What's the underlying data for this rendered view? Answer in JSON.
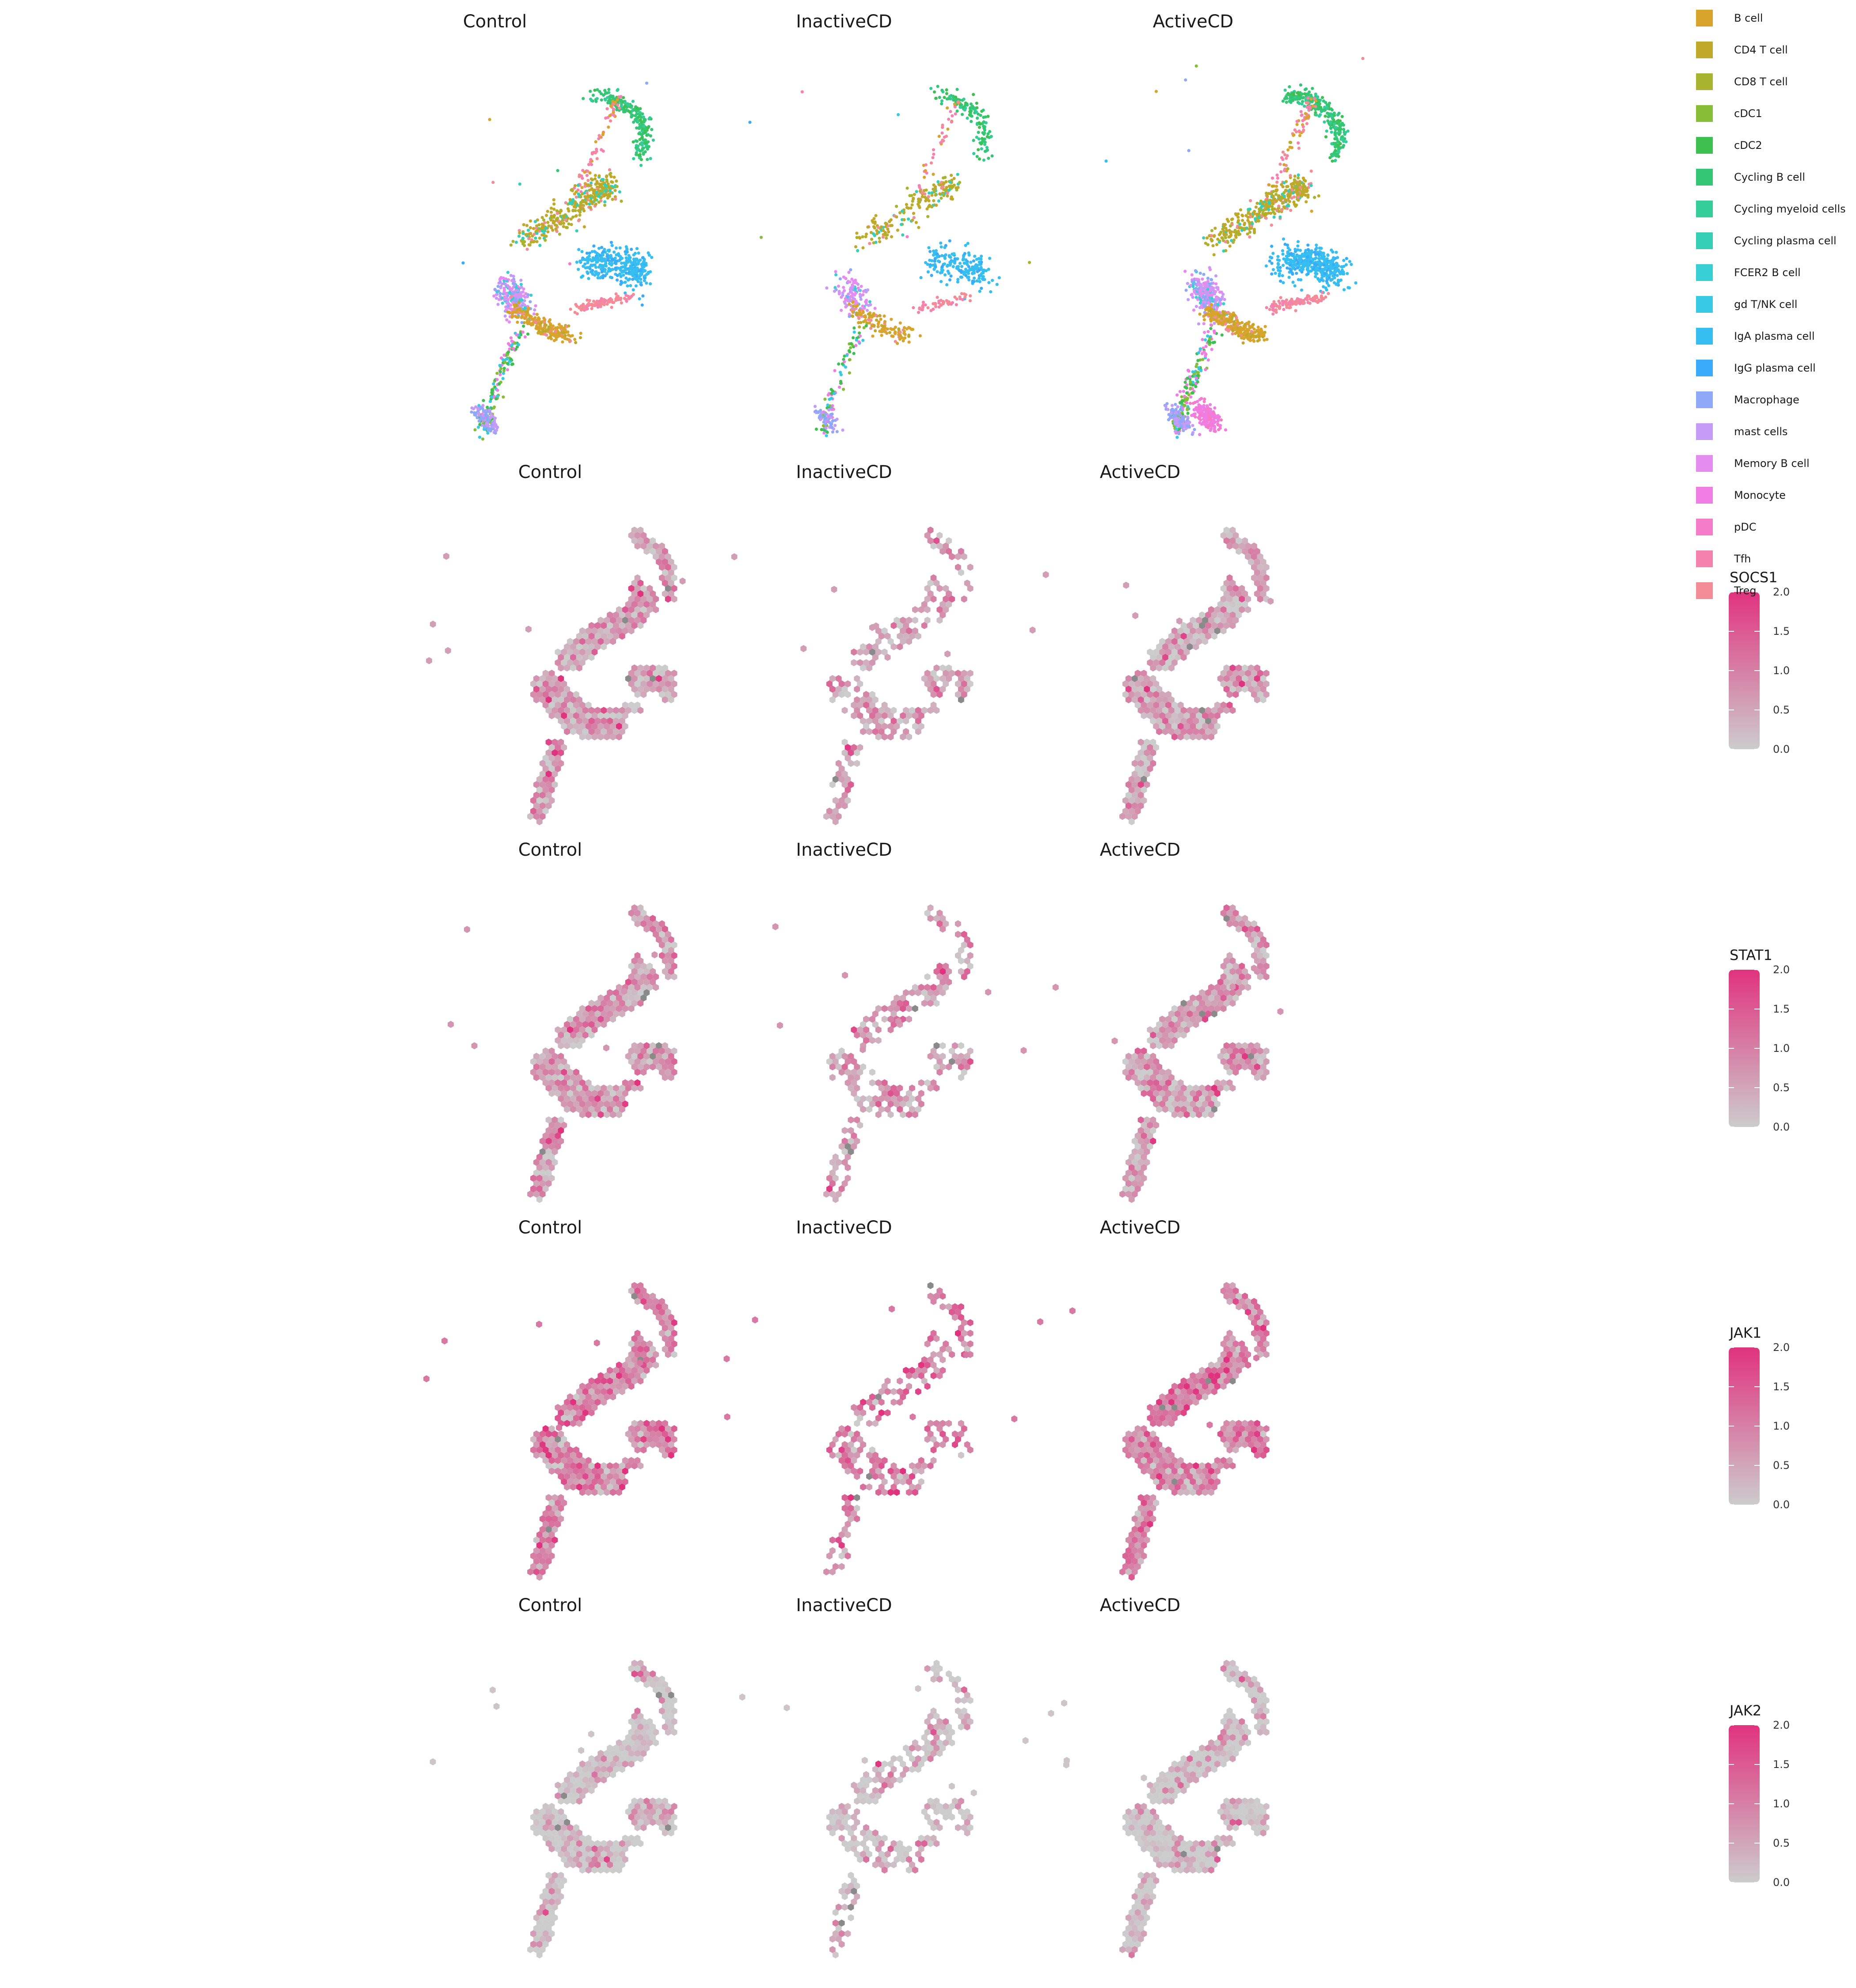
{
  "chart_data": [
    {
      "type": "scatter",
      "title": "",
      "facets": [
        "Control",
        "InactiveCD",
        "ActiveCD"
      ],
      "legend": {
        "title": "",
        "position": "right",
        "entries": [
          {
            "label": "B cell",
            "color": "#D8A42C"
          },
          {
            "label": "CD4 T cell",
            "color": "#C0A92A"
          },
          {
            "label": "CD8 T cell",
            "color": "#A8B42D"
          },
          {
            "label": "cDC1",
            "color": "#86BE38"
          },
          {
            "label": "cDC2",
            "color": "#3DC04F"
          },
          {
            "label": "Cycling B cell",
            "color": "#35C675"
          },
          {
            "label": "Cycling myeloid cells",
            "color": "#34CC98"
          },
          {
            "label": "Cycling plasma cell",
            "color": "#35CFB8"
          },
          {
            "label": "FCER2 B cell",
            "color": "#37CFD3"
          },
          {
            "label": "gd T/NK cell",
            "color": "#38C9E6"
          },
          {
            "label": "IgA plasma cell",
            "color": "#36BEF1"
          },
          {
            "label": "IgG plasma cell",
            "color": "#39ABF8"
          },
          {
            "label": "Macrophage",
            "color": "#8FA8F8"
          },
          {
            "label": "mast cells",
            "color": "#C69BF8"
          },
          {
            "label": "Memory B cell",
            "color": "#E58CF1"
          },
          {
            "label": "Monocyte",
            "color": "#F07DE4"
          },
          {
            "label": "pDC",
            "color": "#F47CC9"
          },
          {
            "label": "Tfh",
            "color": "#F581AE"
          },
          {
            "label": "Treg",
            "color": "#F38C97"
          }
        ]
      }
    },
    {
      "type": "heatmap",
      "gene": "SOCS1",
      "facets": [
        "Control",
        "InactiveCD",
        "ActiveCD"
      ],
      "colorbar": {
        "title": "SOCS1",
        "range": [
          0.0,
          2.0
        ],
        "ticks": [
          "0.0",
          "0.5",
          "1.0",
          "1.5",
          "2.0"
        ],
        "low": "#cccccc",
        "high": "#e0337e"
      }
    },
    {
      "type": "heatmap",
      "gene": "STAT1",
      "facets": [
        "Control",
        "InactiveCD",
        "ActiveCD"
      ],
      "colorbar": {
        "title": "STAT1",
        "range": [
          0.0,
          2.0
        ],
        "ticks": [
          "0.0",
          "0.5",
          "1.0",
          "1.5",
          "2.0"
        ],
        "low": "#cccccc",
        "high": "#e0337e"
      }
    },
    {
      "type": "heatmap",
      "gene": "JAK1",
      "facets": [
        "Control",
        "InactiveCD",
        "ActiveCD"
      ],
      "colorbar": {
        "title": "JAK1",
        "range": [
          0.0,
          2.0
        ],
        "ticks": [
          "0.0",
          "0.5",
          "1.0",
          "1.5",
          "2.0"
        ],
        "low": "#cccccc",
        "high": "#e0337e"
      }
    },
    {
      "type": "heatmap",
      "gene": "JAK2",
      "facets": [
        "Control",
        "InactiveCD",
        "ActiveCD"
      ],
      "colorbar": {
        "title": "JAK2",
        "range": [
          0.0,
          2.0
        ],
        "ticks": [
          "0.0",
          "0.5",
          "1.0",
          "1.5",
          "2.0"
        ],
        "low": "#cccccc",
        "high": "#e0337e"
      }
    }
  ]
}
